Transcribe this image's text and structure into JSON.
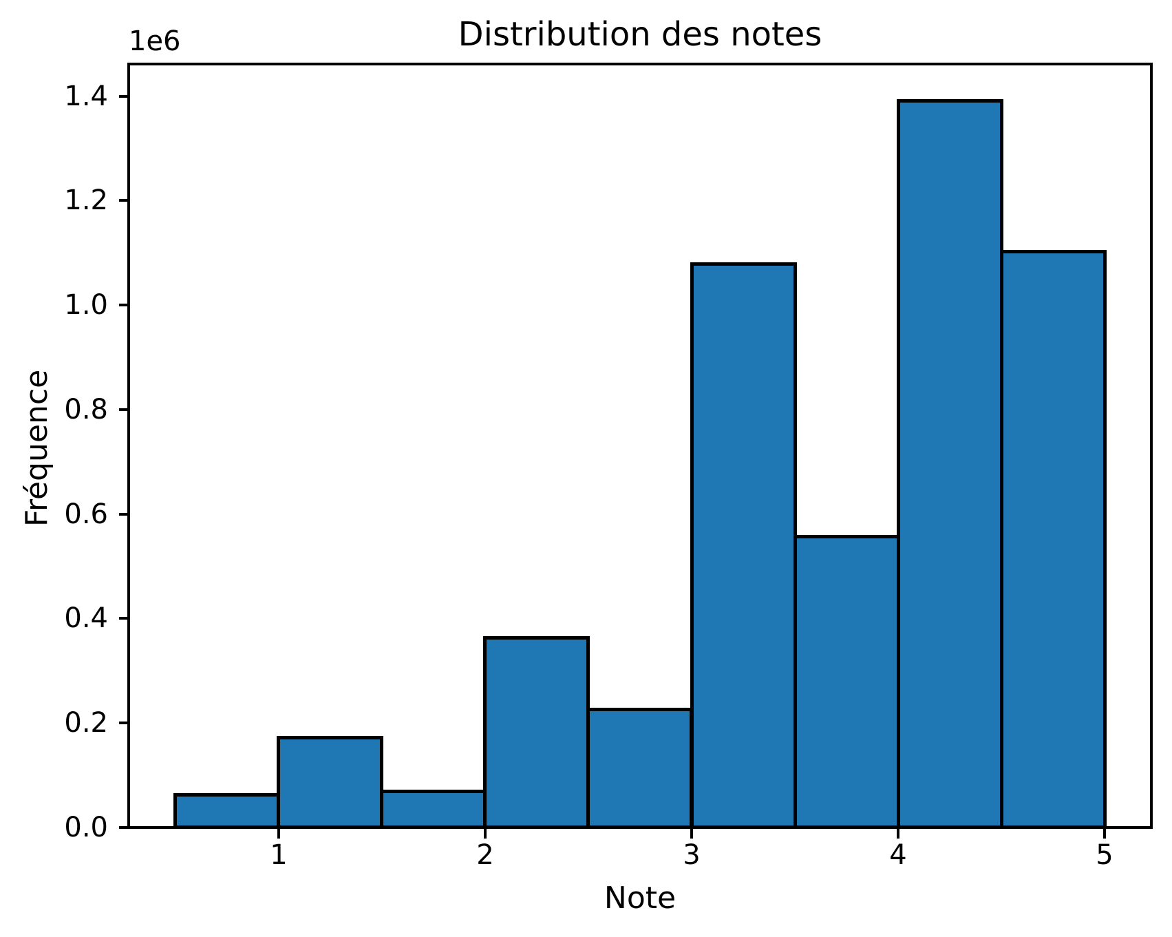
{
  "chart_data": {
    "type": "bar",
    "chart_kind": "histogram",
    "title": "Distribution des notes",
    "xlabel": "Note",
    "ylabel": "Fréquence",
    "y_offset_text": "1e6",
    "bin_edges": [
      0.5,
      1.0,
      1.5,
      2.0,
      2.5,
      3.0,
      3.5,
      4.0,
      4.5,
      5.0
    ],
    "counts": [
      63000,
      172000,
      70000,
      364000,
      227000,
      1080000,
      558000,
      1392000,
      1103000
    ],
    "xlim": [
      0.275,
      5.225
    ],
    "ylim": [
      0,
      1461600
    ],
    "xticks": [
      {
        "value": 1,
        "label": "1"
      },
      {
        "value": 2,
        "label": "2"
      },
      {
        "value": 3,
        "label": "3"
      },
      {
        "value": 4,
        "label": "4"
      },
      {
        "value": 5,
        "label": "5"
      }
    ],
    "yticks": [
      {
        "value": 0,
        "label": "0.0"
      },
      {
        "value": 200000,
        "label": "0.2"
      },
      {
        "value": 400000,
        "label": "0.4"
      },
      {
        "value": 600000,
        "label": "0.6"
      },
      {
        "value": 800000,
        "label": "0.8"
      },
      {
        "value": 1000000,
        "label": "1.0"
      },
      {
        "value": 1200000,
        "label": "1.2"
      },
      {
        "value": 1400000,
        "label": "1.4"
      }
    ],
    "grid": false,
    "legend": null,
    "bar_color": "#1f77b4",
    "bar_edge_color": "#000000",
    "axis_color": "#000000",
    "background_color": "#ffffff"
  }
}
